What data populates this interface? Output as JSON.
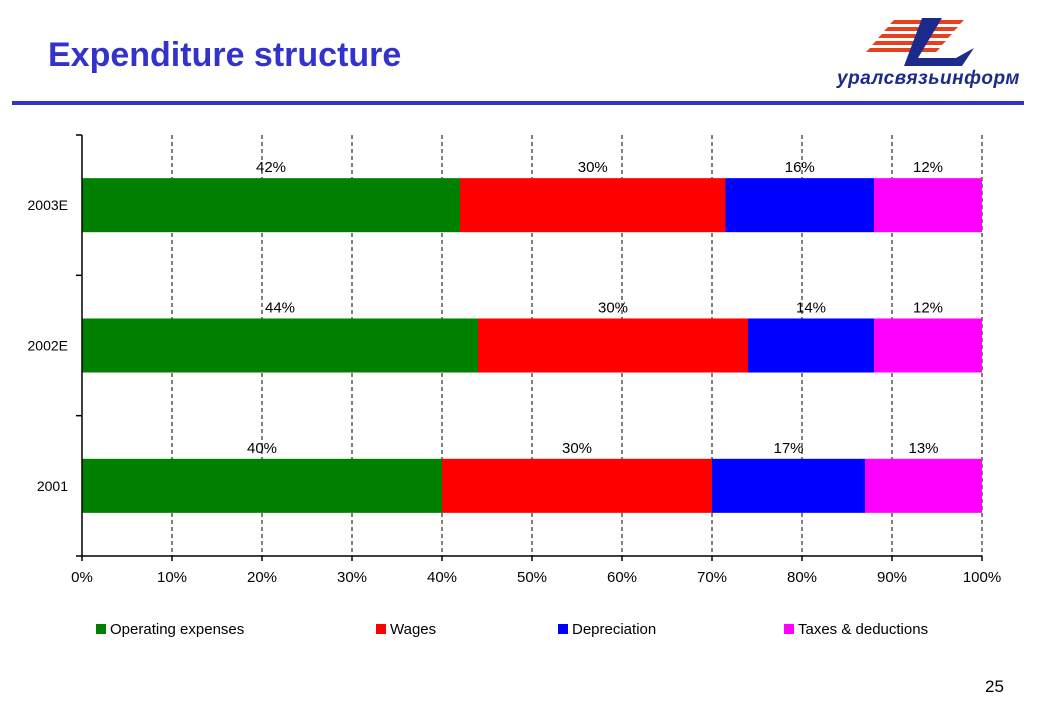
{
  "slide": {
    "title": "Expenditure structure",
    "page_number": "25",
    "logo_text": "уралсвязьинформ"
  },
  "colors": {
    "title": "#3333cc",
    "rule": "#3333cc",
    "logo_red": "#e8401c",
    "logo_blue": "#1c2a8c"
  },
  "chart_data": {
    "type": "bar",
    "orientation": "horizontal",
    "stacked": true,
    "percent_scale": true,
    "categories": [
      "2003E",
      "2002E",
      "2001"
    ],
    "series": [
      {
        "name": "Operating expenses",
        "color": "#008000",
        "values": [
          42,
          44,
          40
        ],
        "labels": [
          "42%",
          "44%",
          "40%"
        ]
      },
      {
        "name": "Wages",
        "color": "#ff0000",
        "values": [
          29.5,
          30,
          30
        ],
        "labels": [
          "30%",
          "30%",
          "30%"
        ]
      },
      {
        "name": "Depreciation",
        "color": "#0000ff",
        "values": [
          16.5,
          14,
          17
        ],
        "labels": [
          "16%",
          "14%",
          "17%"
        ]
      },
      {
        "name": "Taxes & deductions",
        "color": "#ff00ff",
        "values": [
          12,
          12,
          13
        ],
        "labels": [
          "12%",
          "12%",
          "13%"
        ]
      }
    ],
    "x_ticks": [
      "0%",
      "10%",
      "20%",
      "30%",
      "40%",
      "50%",
      "60%",
      "70%",
      "80%",
      "90%",
      "100%"
    ],
    "xlim": [
      0,
      100
    ],
    "grid": "vertical dashed",
    "legend_position": "bottom"
  }
}
